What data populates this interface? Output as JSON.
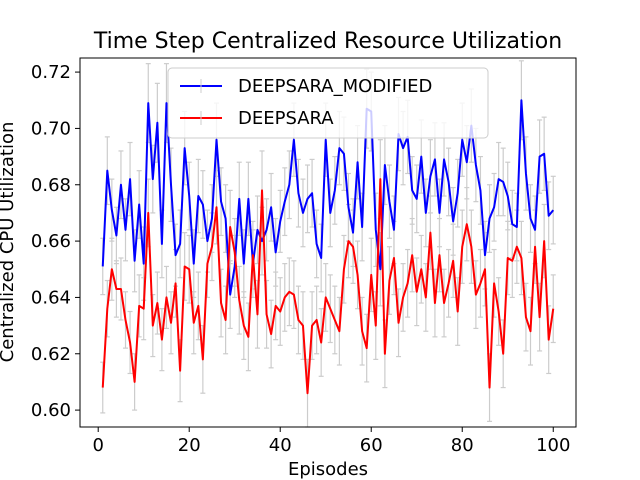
{
  "chart_data": {
    "type": "line",
    "title": "Time Step Centralized Resource Utilization",
    "xlabel": "Episodes",
    "ylabel": "Centralized CPU Utilization",
    "xlim": [
      -4,
      105
    ],
    "ylim": [
      0.594,
      0.725
    ],
    "xticks": [
      0,
      20,
      40,
      60,
      80,
      100
    ],
    "yticks": [
      0.6,
      0.62,
      0.64,
      0.66,
      0.68,
      0.7,
      0.72
    ],
    "grid": false,
    "legend_position": "top-center",
    "error_bar_color": "#cccccc",
    "series": [
      {
        "name": "DEEPSARA_MODIFIED",
        "color": "#0000ff",
        "x": [
          1,
          2,
          3,
          4,
          5,
          6,
          7,
          8,
          9,
          10,
          11,
          12,
          13,
          14,
          15,
          16,
          17,
          18,
          19,
          20,
          21,
          22,
          23,
          24,
          25,
          26,
          27,
          28,
          29,
          30,
          31,
          32,
          33,
          34,
          35,
          36,
          37,
          38,
          39,
          40,
          41,
          42,
          43,
          44,
          45,
          46,
          47,
          48,
          49,
          50,
          51,
          52,
          53,
          54,
          55,
          56,
          57,
          58,
          59,
          60,
          61,
          62,
          63,
          64,
          65,
          66,
          67,
          68,
          69,
          70,
          71,
          72,
          73,
          74,
          75,
          76,
          77,
          78,
          79,
          80,
          81,
          82,
          83,
          84,
          85,
          86,
          87,
          88,
          89,
          90,
          91,
          92,
          93,
          94,
          95,
          96,
          97,
          98,
          99,
          100
        ],
        "values": [
          0.651,
          0.685,
          0.671,
          0.662,
          0.68,
          0.664,
          0.682,
          0.653,
          0.673,
          0.652,
          0.709,
          0.682,
          0.702,
          0.659,
          0.709,
          0.68,
          0.655,
          0.659,
          0.693,
          0.676,
          0.652,
          0.676,
          0.673,
          0.66,
          0.668,
          0.696,
          0.674,
          0.668,
          0.641,
          0.651,
          0.675,
          0.652,
          0.675,
          0.652,
          0.664,
          0.66,
          0.664,
          0.672,
          0.656,
          0.667,
          0.674,
          0.68,
          0.696,
          0.677,
          0.67,
          0.675,
          0.677,
          0.659,
          0.654,
          0.696,
          0.67,
          0.678,
          0.693,
          0.691,
          0.672,
          0.663,
          0.688,
          0.665,
          0.707,
          0.706,
          0.664,
          0.65,
          0.687,
          0.674,
          0.664,
          0.698,
          0.693,
          0.697,
          0.678,
          0.675,
          0.69,
          0.67,
          0.683,
          0.689,
          0.67,
          0.689,
          0.681,
          0.667,
          0.677,
          0.696,
          0.688,
          0.701,
          0.687,
          0.678,
          0.655,
          0.668,
          0.672,
          0.682,
          0.681,
          0.676,
          0.666,
          0.665,
          0.71,
          0.684,
          0.668,
          0.664,
          0.69,
          0.691,
          0.669,
          0.671
        ],
        "errors": [
          0.01,
          0.012,
          0.011,
          0.01,
          0.012,
          0.011,
          0.013,
          0.011,
          0.012,
          0.013,
          0.014,
          0.012,
          0.014,
          0.012,
          0.014,
          0.013,
          0.011,
          0.012,
          0.013,
          0.012,
          0.012,
          0.013,
          0.012,
          0.011,
          0.012,
          0.013,
          0.012,
          0.012,
          0.012,
          0.011,
          0.013,
          0.012,
          0.013,
          0.012,
          0.012,
          0.012,
          0.011,
          0.012,
          0.012,
          0.011,
          0.012,
          0.012,
          0.013,
          0.012,
          0.012,
          0.012,
          0.012,
          0.012,
          0.012,
          0.013,
          0.012,
          0.012,
          0.013,
          0.013,
          0.012,
          0.012,
          0.013,
          0.012,
          0.014,
          0.014,
          0.013,
          0.013,
          0.014,
          0.013,
          0.012,
          0.013,
          0.013,
          0.013,
          0.012,
          0.012,
          0.013,
          0.012,
          0.013,
          0.013,
          0.012,
          0.013,
          0.012,
          0.012,
          0.012,
          0.013,
          0.013,
          0.013,
          0.013,
          0.012,
          0.012,
          0.012,
          0.012,
          0.013,
          0.012,
          0.012,
          0.012,
          0.012,
          0.014,
          0.013,
          0.012,
          0.012,
          0.013,
          0.013,
          0.012,
          0.012
        ]
      },
      {
        "name": "DEEPSARA",
        "color": "#ff0000",
        "x": [
          1,
          2,
          3,
          4,
          5,
          6,
          7,
          8,
          9,
          10,
          11,
          12,
          13,
          14,
          15,
          16,
          17,
          18,
          19,
          20,
          21,
          22,
          23,
          24,
          25,
          26,
          27,
          28,
          29,
          30,
          31,
          32,
          33,
          34,
          35,
          36,
          37,
          38,
          39,
          40,
          41,
          42,
          43,
          44,
          45,
          46,
          47,
          48,
          49,
          50,
          51,
          52,
          53,
          54,
          55,
          56,
          57,
          58,
          59,
          60,
          61,
          62,
          63,
          64,
          65,
          66,
          67,
          68,
          69,
          70,
          71,
          72,
          73,
          74,
          75,
          76,
          77,
          78,
          79,
          80,
          81,
          82,
          83,
          84,
          85,
          86,
          87,
          88,
          89,
          90,
          91,
          92,
          93,
          94,
          95,
          96,
          97,
          98,
          99,
          100
        ],
        "values": [
          0.608,
          0.636,
          0.65,
          0.643,
          0.643,
          0.632,
          0.624,
          0.61,
          0.637,
          0.636,
          0.67,
          0.63,
          0.638,
          0.625,
          0.64,
          0.631,
          0.645,
          0.614,
          0.651,
          0.65,
          0.631,
          0.637,
          0.618,
          0.652,
          0.658,
          0.672,
          0.638,
          0.632,
          0.665,
          0.656,
          0.639,
          0.63,
          0.626,
          0.655,
          0.634,
          0.678,
          0.634,
          0.627,
          0.637,
          0.635,
          0.64,
          0.642,
          0.641,
          0.632,
          0.63,
          0.606,
          0.63,
          0.632,
          0.624,
          0.64,
          0.636,
          0.632,
          0.628,
          0.65,
          0.66,
          0.658,
          0.648,
          0.628,
          0.622,
          0.648,
          0.63,
          0.682,
          0.62,
          0.646,
          0.654,
          0.631,
          0.64,
          0.645,
          0.655,
          0.642,
          0.65,
          0.64,
          0.663,
          0.638,
          0.655,
          0.638,
          0.645,
          0.653,
          0.635,
          0.658,
          0.666,
          0.658,
          0.641,
          0.645,
          0.65,
          0.608,
          0.645,
          0.635,
          0.62,
          0.654,
          0.653,
          0.658,
          0.654,
          0.633,
          0.628,
          0.658,
          0.633,
          0.66,
          0.625,
          0.636
        ],
        "errors": [
          0.009,
          0.01,
          0.011,
          0.01,
          0.011,
          0.01,
          0.011,
          0.01,
          0.011,
          0.011,
          0.012,
          0.011,
          0.011,
          0.011,
          0.011,
          0.011,
          0.012,
          0.011,
          0.012,
          0.012,
          0.011,
          0.012,
          0.012,
          0.012,
          0.012,
          0.013,
          0.012,
          0.012,
          0.013,
          0.012,
          0.012,
          0.012,
          0.012,
          0.012,
          0.012,
          0.014,
          0.012,
          0.012,
          0.012,
          0.012,
          0.012,
          0.012,
          0.012,
          0.012,
          0.012,
          0.012,
          0.012,
          0.012,
          0.012,
          0.012,
          0.012,
          0.012,
          0.012,
          0.012,
          0.013,
          0.013,
          0.012,
          0.012,
          0.012,
          0.013,
          0.012,
          0.014,
          0.012,
          0.012,
          0.013,
          0.012,
          0.012,
          0.012,
          0.013,
          0.012,
          0.012,
          0.012,
          0.013,
          0.012,
          0.013,
          0.012,
          0.012,
          0.013,
          0.012,
          0.013,
          0.013,
          0.013,
          0.012,
          0.012,
          0.013,
          0.012,
          0.012,
          0.012,
          0.012,
          0.013,
          0.013,
          0.013,
          0.013,
          0.012,
          0.012,
          0.013,
          0.012,
          0.013,
          0.012,
          0.012
        ]
      }
    ]
  }
}
